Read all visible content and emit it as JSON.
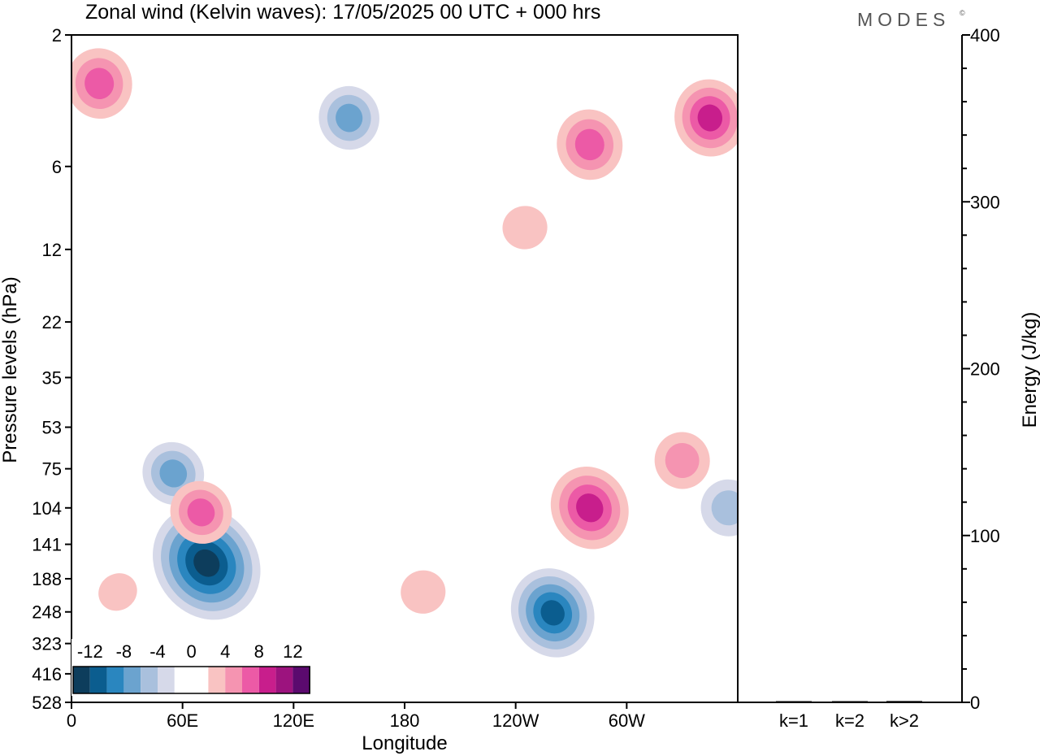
{
  "title": "Zonal wind (Kelvin waves):  17/05/2025  00 UTC  + 000 hrs",
  "brand": "MODES",
  "brand_mark": "©",
  "colors": {
    "neg": [
      "#0d3d5c",
      "#0b5d8f",
      "#2a86bf",
      "#6ba3cf",
      "#a9c0dd",
      "#d6d9e9"
    ],
    "zero": "#ffffff",
    "pos": [
      "#f9c3c2",
      "#f594b1",
      "#ec5aa6",
      "#c81e8c",
      "#9c137e",
      "#5b0a6e"
    ]
  },
  "chart_data": [
    {
      "type": "heatmap",
      "title": "Zonal wind (Kelvin waves):  17/05/2025  00 UTC  + 000 hrs",
      "xlabel": "Longitude",
      "ylabel": "Pressure levels (hPa)",
      "x_ticks": [
        "0",
        "60E",
        "120E",
        "180",
        "120W",
        "60W"
      ],
      "x_tick_lon": [
        0,
        60,
        120,
        180,
        240,
        300
      ],
      "x_range": [
        0,
        360
      ],
      "y_scale": "log",
      "y_ticks": [
        "2",
        "6",
        "12",
        "22",
        "35",
        "53",
        "75",
        "104",
        "141",
        "188",
        "248",
        "323",
        "416",
        "528"
      ],
      "colorbar_labels": [
        "-12",
        "-8",
        "-4",
        "0",
        "4",
        "8",
        "12"
      ],
      "colorbar_placement": "bottom-left",
      "features": [
        {
          "lon": 73,
          "p": 165,
          "val": -14
        },
        {
          "lon": 260,
          "p": 250,
          "val": -10
        },
        {
          "lon": 55,
          "p": 78,
          "val": -6
        },
        {
          "lon": 150,
          "p": 4,
          "val": -6
        },
        {
          "lon": 280,
          "p": 104,
          "val": 9
        },
        {
          "lon": 330,
          "p": 70,
          "val": 5
        },
        {
          "lon": 280,
          "p": 5,
          "val": 7
        },
        {
          "lon": 15,
          "p": 3,
          "val": 7
        },
        {
          "lon": 345,
          "p": 4,
          "val": 8
        },
        {
          "lon": 190,
          "p": 210,
          "val": 3
        },
        {
          "lon": 70,
          "p": 108,
          "val": 6
        },
        {
          "lon": 245,
          "p": 10,
          "val": 3
        },
        {
          "lon": 25,
          "p": 210,
          "val": 2
        },
        {
          "lon": 355,
          "p": 104,
          "val": -5
        }
      ]
    },
    {
      "type": "bar",
      "categories": [
        "k=1",
        "k=2",
        "k>2"
      ],
      "values": [
        0.3,
        0.5,
        0.8
      ],
      "ylabel": "Energy (J/kg)",
      "ylim": [
        0,
        400
      ],
      "y_ticks": [
        "0",
        "100",
        "200",
        "300",
        "400"
      ]
    }
  ]
}
